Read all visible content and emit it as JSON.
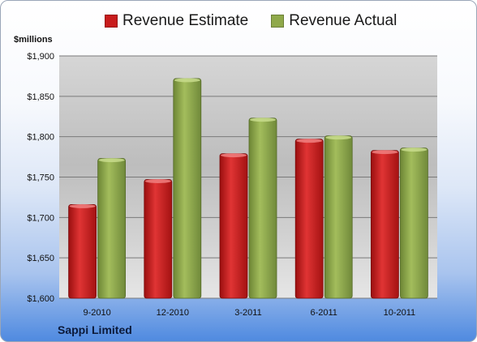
{
  "chart_data": {
    "type": "bar",
    "title": "",
    "ylabel": "$millions",
    "categories": [
      "9-2010",
      "12-2010",
      "3-2011",
      "6-2011",
      "10-2011"
    ],
    "series": [
      {
        "name": "Revenue Estimate",
        "values": [
          1716,
          1747,
          1779,
          1797,
          1783
        ],
        "color": "#c81c1c"
      },
      {
        "name": "Revenue Actual",
        "values": [
          1773,
          1872,
          1823,
          1801,
          1786
        ],
        "color": "#8fa94a"
      }
    ],
    "ylim": [
      1600,
      1900
    ],
    "yticks": [
      1600,
      1650,
      1700,
      1750,
      1800,
      1850,
      1900
    ],
    "ytick_labels": [
      "$1,600",
      "$1,650",
      "$1,700",
      "$1,750",
      "$1,800",
      "$1,850",
      "$1,900"
    ],
    "grid": true,
    "legend_position": "top"
  },
  "footer": {
    "company": "Sappi Limited"
  }
}
